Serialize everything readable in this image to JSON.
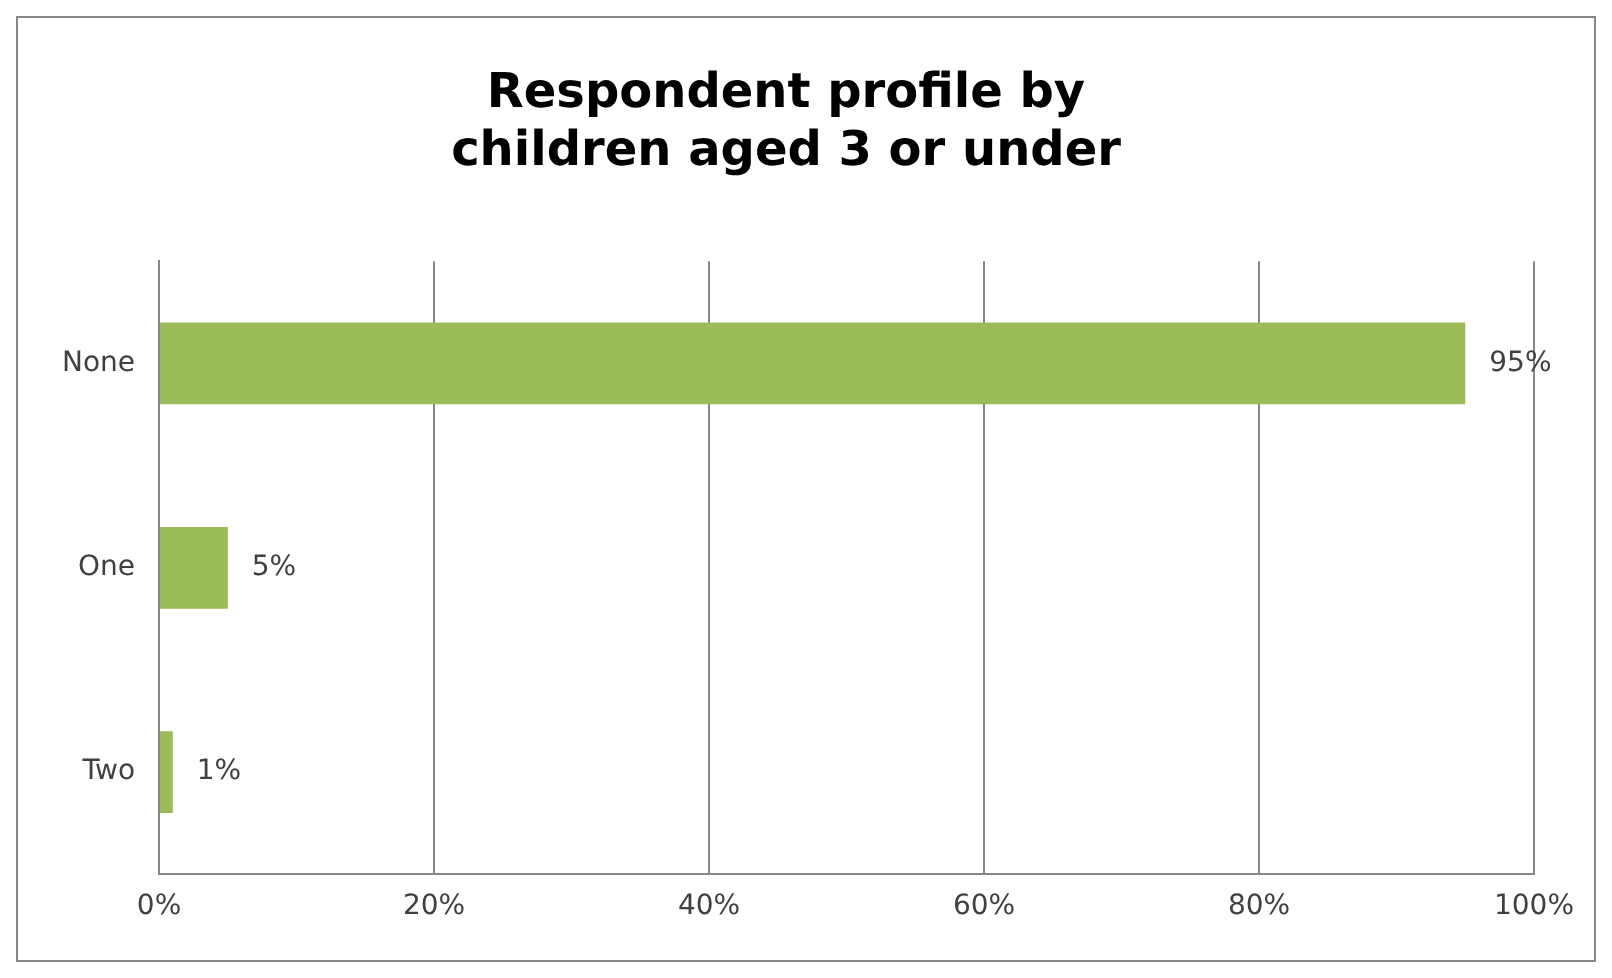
{
  "chart_data": {
    "type": "bar",
    "orientation": "horizontal",
    "title": "Respondent profile by children aged 3 or under",
    "categories": [
      "None",
      "One",
      "Two"
    ],
    "values": [
      95,
      5,
      1
    ],
    "color": "#9bbb59",
    "value_labels": [
      "95%",
      "5%",
      "1%"
    ],
    "xlim": [
      0,
      100
    ],
    "xticks": [
      {
        "value": 0,
        "label": "0%"
      },
      {
        "value": 20,
        "label": "20%"
      },
      {
        "value": 40,
        "label": "40%"
      },
      {
        "value": 60,
        "label": "60%"
      },
      {
        "value": 80,
        "label": "80%"
      },
      {
        "value": 100,
        "label": "100%"
      }
    ],
    "grid": "x",
    "legend": false
  }
}
